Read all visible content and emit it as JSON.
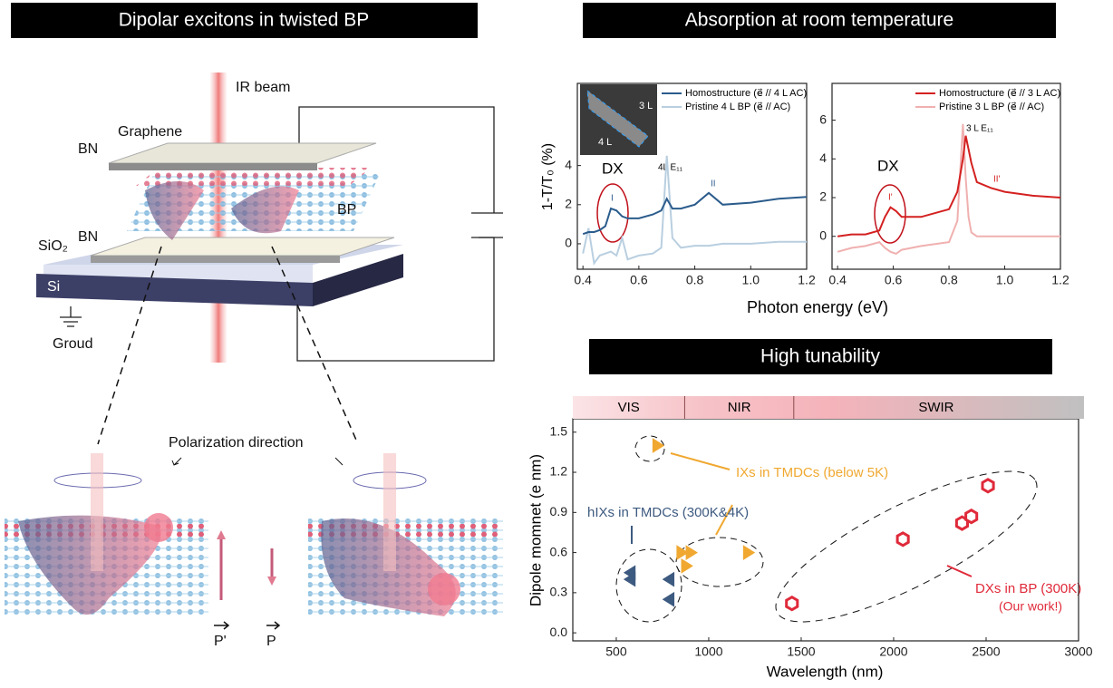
{
  "panel_titles": [
    "Dipolar excitons in twisted BP",
    "Absorption at room temperature",
    "High tunability"
  ],
  "diagram": {
    "labels": [
      "IR beam",
      "Graphene",
      "BN",
      "BP",
      "SiO₂",
      "BN",
      "Si",
      "Groud",
      "Polarization direction",
      "P'",
      "P"
    ]
  },
  "chart_data": [
    {
      "type": "line",
      "y_label": "1-T/T₀ (%)",
      "x_label": "Photon energy (eV)",
      "xlim": [
        0.38,
        1.2
      ],
      "ylim": [
        -1.3,
        8.2
      ],
      "xticks": [
        0.4,
        0.6,
        0.8,
        {
          "value": 1,
          "label": "1.0"
        },
        1.2
      ],
      "yticks": [
        0,
        2,
        4
      ],
      "legend": "upper right",
      "annotations": [
        "DX",
        "4L E₁₁",
        "I",
        "II"
      ],
      "inset_labels": [
        "3 L",
        "4 L"
      ],
      "x": [
        0.4,
        0.42,
        0.44,
        0.46,
        0.48,
        0.5,
        0.52,
        0.54,
        0.56,
        0.6,
        0.65,
        0.68,
        0.7,
        0.72,
        0.75,
        0.8,
        0.85,
        0.9,
        1.0,
        1.1,
        1.2
      ],
      "series": [
        {
          "name": "Homostructure (e⃗ // 4 L AC)",
          "color": "#2b5c8c",
          "values": [
            0.5,
            0.6,
            0.6,
            0.7,
            0.9,
            1.8,
            1.7,
            1.4,
            1.3,
            1.3,
            1.5,
            1.7,
            2.3,
            1.8,
            1.8,
            2.0,
            2.6,
            2.0,
            2.1,
            2.3,
            2.4
          ]
        },
        {
          "name": "Pristine 4 L BP (e⃗ // AC)",
          "color": "#b9cfe0",
          "values": [
            -0.5,
            0.8,
            -1.0,
            -0.6,
            -0.5,
            -0.4,
            -0.6,
            0.3,
            -0.8,
            -0.6,
            -0.5,
            -0.2,
            4.5,
            0.3,
            -0.2,
            -0.1,
            -0.1,
            0.0,
            0.0,
            0.1,
            0.1
          ]
        }
      ]
    },
    {
      "type": "line",
      "xlim": [
        0.38,
        1.2
      ],
      "ylim": [
        -1.7,
        7.9
      ],
      "xticks": [
        0.4,
        0.6,
        0.8,
        {
          "value": 1,
          "label": "1.0"
        },
        1.2
      ],
      "yticks": [
        0,
        2,
        4,
        6
      ],
      "legend": "upper right",
      "annotations": [
        "DX",
        "3 L E₁₁",
        "I'",
        "II'"
      ],
      "x": [
        0.4,
        0.45,
        0.5,
        0.55,
        0.57,
        0.59,
        0.61,
        0.63,
        0.7,
        0.8,
        0.83,
        0.85,
        0.86,
        0.87,
        0.88,
        0.9,
        0.95,
        1.0,
        1.1,
        1.2
      ],
      "series": [
        {
          "name": "Homostructure (e⃗ // 3 L AC)",
          "color": "#d42020",
          "values": [
            0.0,
            0.1,
            0.1,
            0.3,
            1.0,
            1.5,
            1.3,
            1.0,
            1.0,
            1.4,
            2.3,
            4.0,
            5.2,
            4.5,
            3.8,
            2.8,
            2.5,
            2.3,
            2.1,
            2.0
          ]
        },
        {
          "name": "Pristine 3 L BP (e⃗ // AC)",
          "color": "#f0b0b0",
          "values": [
            -0.8,
            -0.6,
            -0.5,
            -0.3,
            -0.6,
            -0.8,
            -0.9,
            -0.7,
            -0.5,
            -0.3,
            0.8,
            5.8,
            3.0,
            1.0,
            0.2,
            0.0,
            0.0,
            0.0,
            0.0,
            0.0
          ]
        }
      ]
    },
    {
      "type": "scatter",
      "x_label": "Wavelength (nm)",
      "y_label": "Dipole momnet (e nm)",
      "xlim": [
        265,
        3000
      ],
      "ylim": [
        -0.06,
        1.6
      ],
      "xticks": [
        500,
        1000,
        1500,
        2000,
        2500,
        3000
      ],
      "yticks": [
        {
          "value": 0,
          "label": "0.0"
        },
        0.3,
        0.6,
        0.9,
        1.2,
        1.5
      ],
      "bands": [
        "VIS",
        "NIR",
        "SWIR"
      ],
      "band_edges": [
        265,
        870,
        1460,
        3000
      ],
      "annotations": [
        "(Our work!)"
      ],
      "series": [
        {
          "name": "IXs in TMDCs (below 5K)",
          "color": "#f0a830",
          "marker": "triangle",
          "x": [
            720,
            850,
            875,
            900,
            1210
          ],
          "values": [
            1.4,
            0.6,
            0.5,
            0.6,
            0.6
          ]
        },
        {
          "name": "hIXs in TMDCs (300K&4K)",
          "color": "#3d5a80",
          "marker": "triangle-left",
          "x": [
            580,
            580,
            790,
            790
          ],
          "values": [
            0.45,
            0.4,
            0.4,
            0.25
          ]
        },
        {
          "name": "DXs in BP (300K)",
          "color": "#e02a3a",
          "marker": "hexagon",
          "x": [
            1450,
            2050,
            2370,
            2420,
            2510
          ],
          "values": [
            0.22,
            0.7,
            0.82,
            0.87,
            1.1
          ]
        }
      ]
    }
  ]
}
